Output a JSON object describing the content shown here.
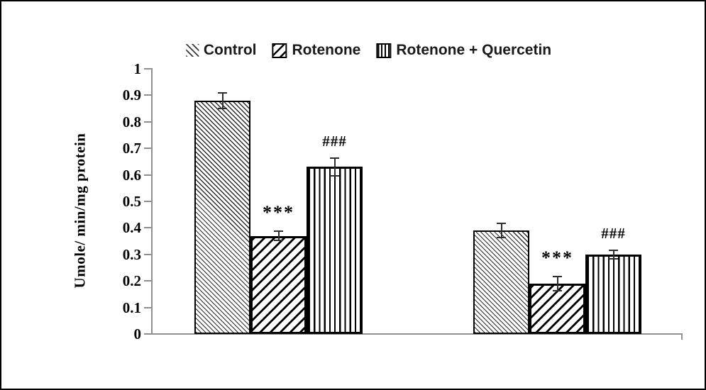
{
  "figure": {
    "background": "#ffffff",
    "border_color": "#000000"
  },
  "chart_data": {
    "type": "bar",
    "title": "",
    "xlabel": "",
    "ylabel": "Umole/ min/mg protein",
    "ylim": [
      0,
      1
    ],
    "ytick_labels": [
      "1",
      "0.9",
      "0.8",
      "0.7",
      "0.6",
      "0.5",
      "0.4",
      "0.3",
      "0.2",
      "0.1",
      "0"
    ],
    "categories": [
      "",
      ""
    ],
    "grid": false,
    "legend_position": "top",
    "axis_color": "#8f8f8f",
    "bar_outline_color": "#000000",
    "series": [
      {
        "name": "Control",
        "pattern": "control",
        "pattern_description": "dense thin backslash diagonal hatch",
        "values": [
          0.88,
          0.39
        ],
        "errors": [
          0.032,
          0.029
        ],
        "annotations": [
          "",
          ""
        ]
      },
      {
        "name": "Rotenone",
        "pattern": "rotenone",
        "pattern_description": "wide thick forward-slash diagonal hatch",
        "values": [
          0.37,
          0.19
        ],
        "errors": [
          0.02,
          0.03
        ],
        "annotations": [
          "***",
          "***"
        ]
      },
      {
        "name": "Rotenone + Quercetin",
        "pattern": "quercetin",
        "pattern_description": "vertical line hatch",
        "values": [
          0.63,
          0.3
        ],
        "errors": [
          0.037,
          0.019
        ],
        "annotations": [
          "###",
          "###"
        ]
      }
    ]
  }
}
